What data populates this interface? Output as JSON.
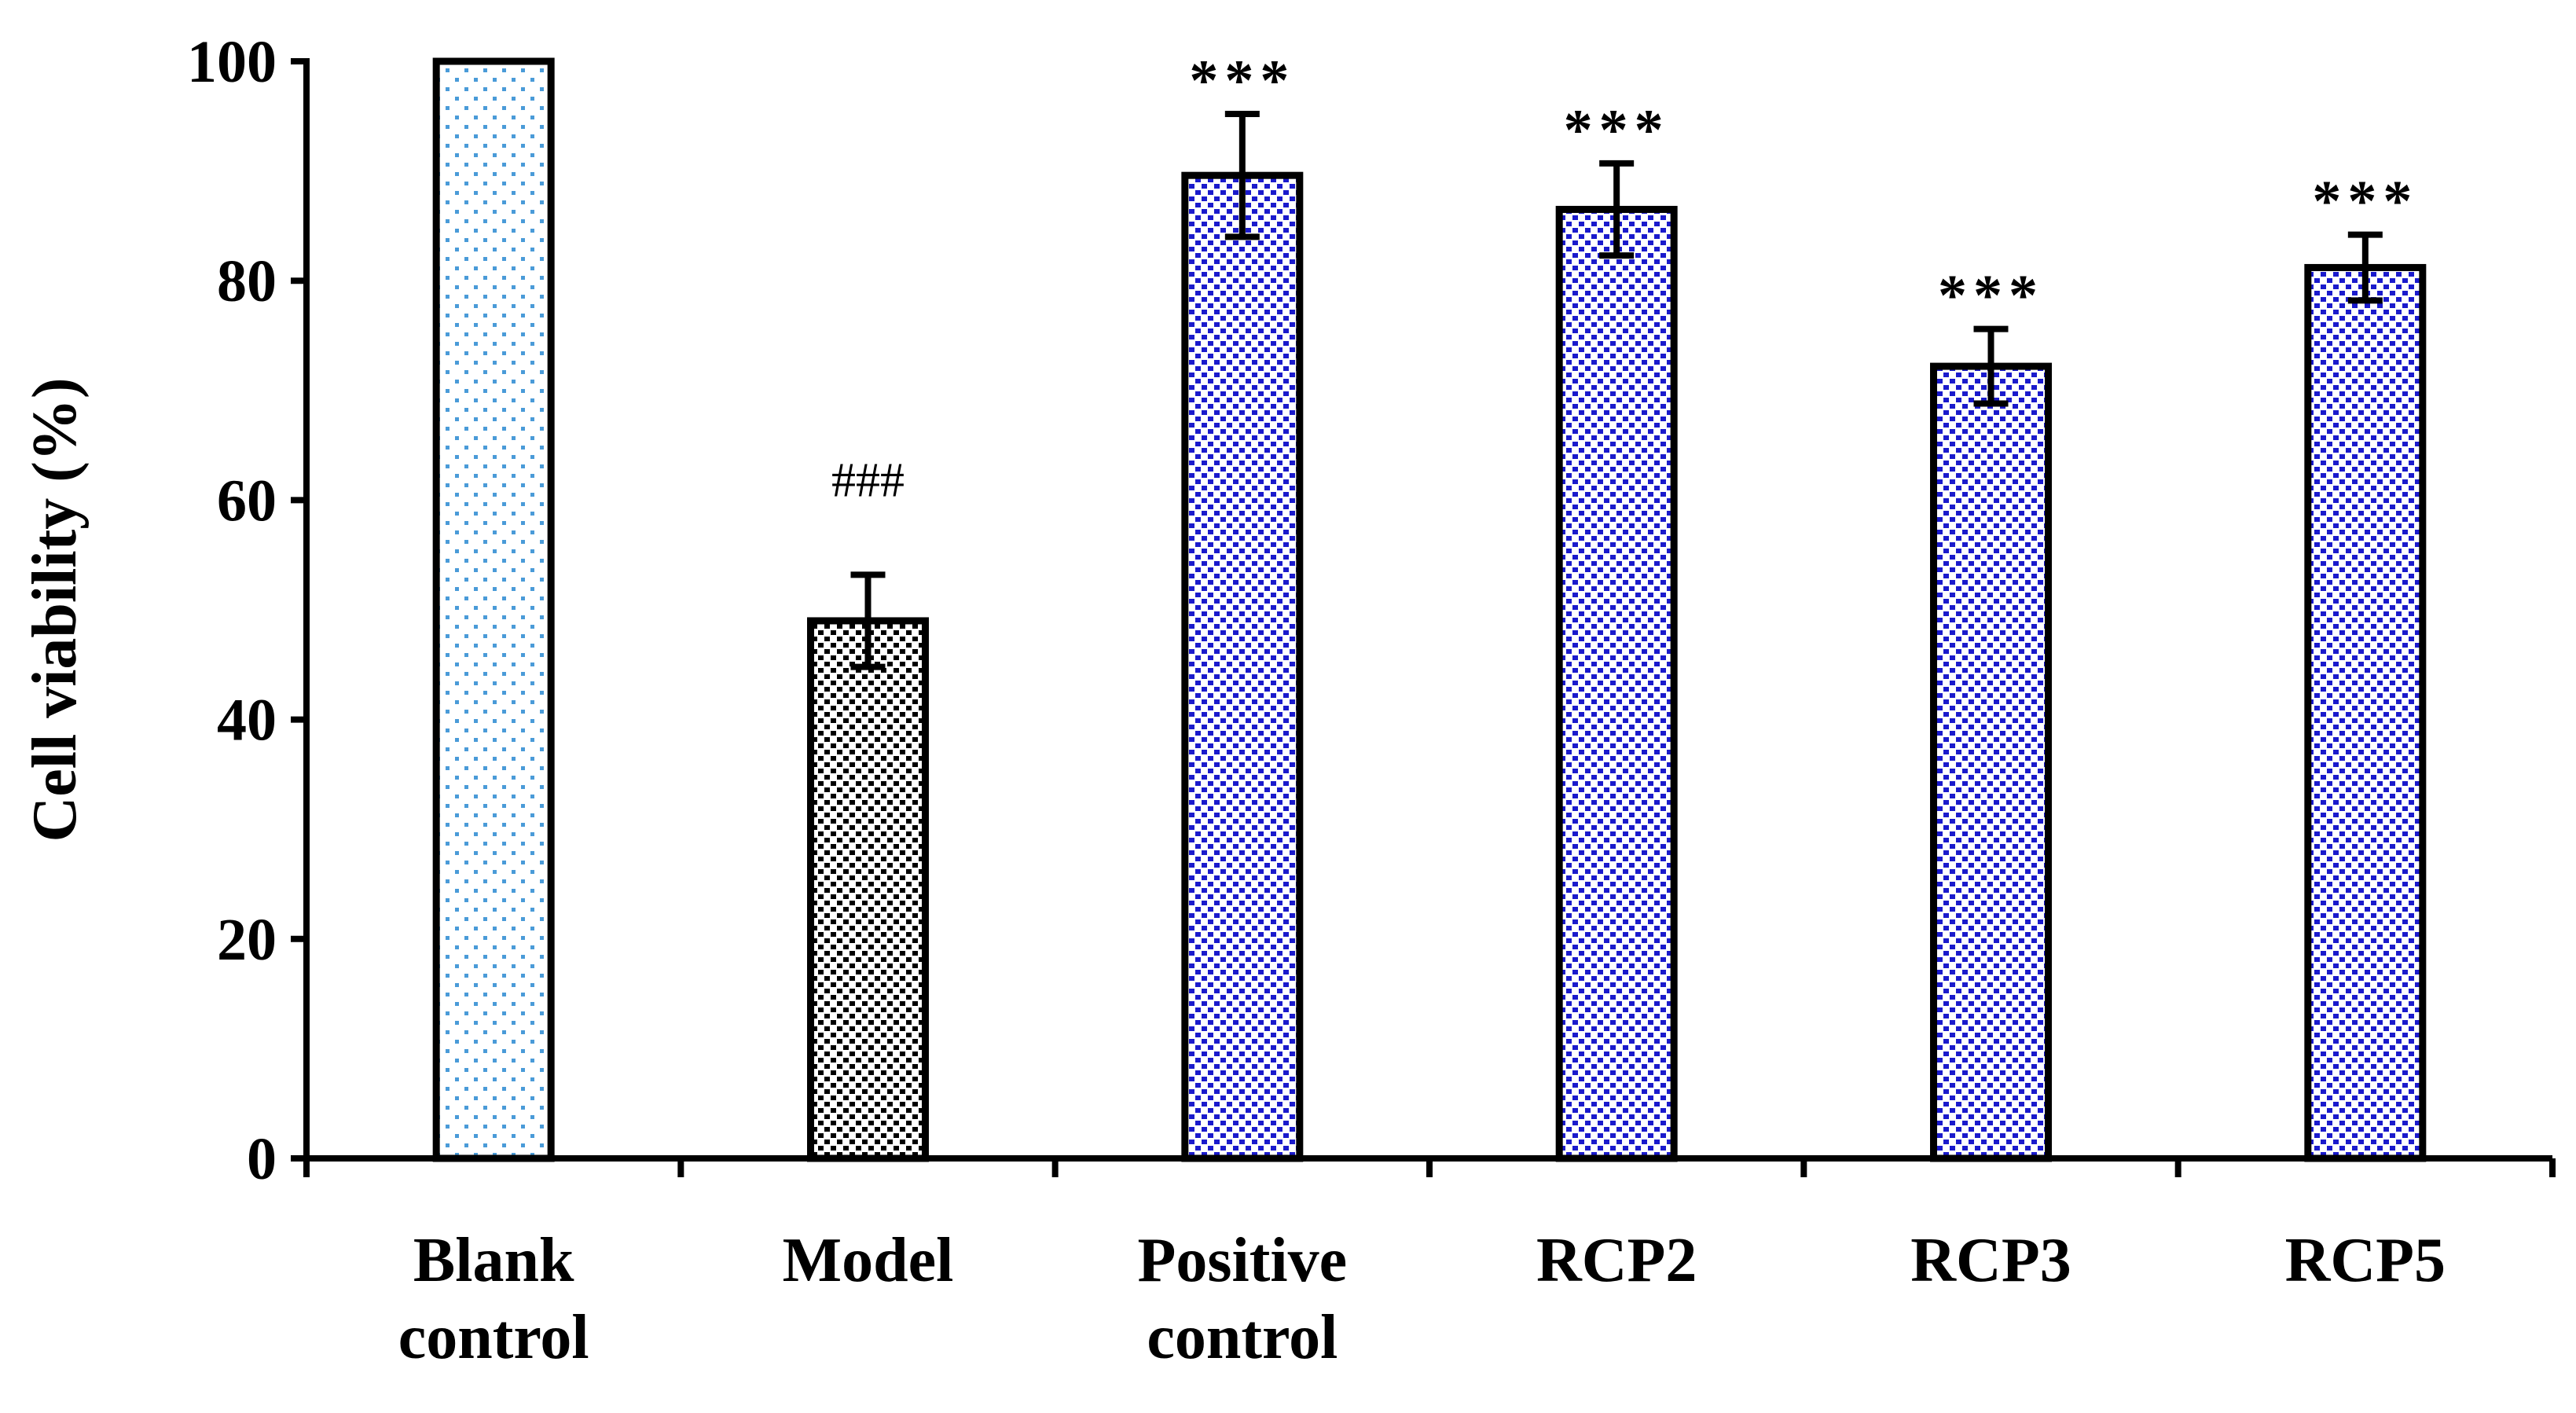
{
  "chart_data": {
    "type": "bar",
    "title": "",
    "xlabel": "",
    "ylabel": "Cell viability (%)",
    "ylim": [
      0,
      100
    ],
    "yticks": [
      "0",
      "20",
      "40",
      "60",
      "80",
      "100"
    ],
    "grid": false,
    "categories": [
      [
        "Blank",
        "control"
      ],
      [
        "Model"
      ],
      [
        "Positive",
        "control"
      ],
      [
        "RCP2"
      ],
      [
        "RCP3"
      ],
      [
        "RCP5"
      ]
    ],
    "values": [
      100,
      49,
      89.6,
      86.5,
      72.2,
      81.2
    ],
    "errors": [
      0,
      4.2,
      5.6,
      4.2,
      3.4,
      3.0
    ],
    "annotations": [
      "",
      "###",
      "***",
      "***",
      "***",
      "***"
    ],
    "patterns": [
      "light-blue-dots",
      "black-dots",
      "blue-dots",
      "blue-dots",
      "blue-dots",
      "blue-dots"
    ]
  },
  "colors": {
    "axis": "#000000",
    "blank_dot": "#4a9bd8",
    "model_dot": "#000000",
    "treated_dot": "#1a1acc"
  }
}
